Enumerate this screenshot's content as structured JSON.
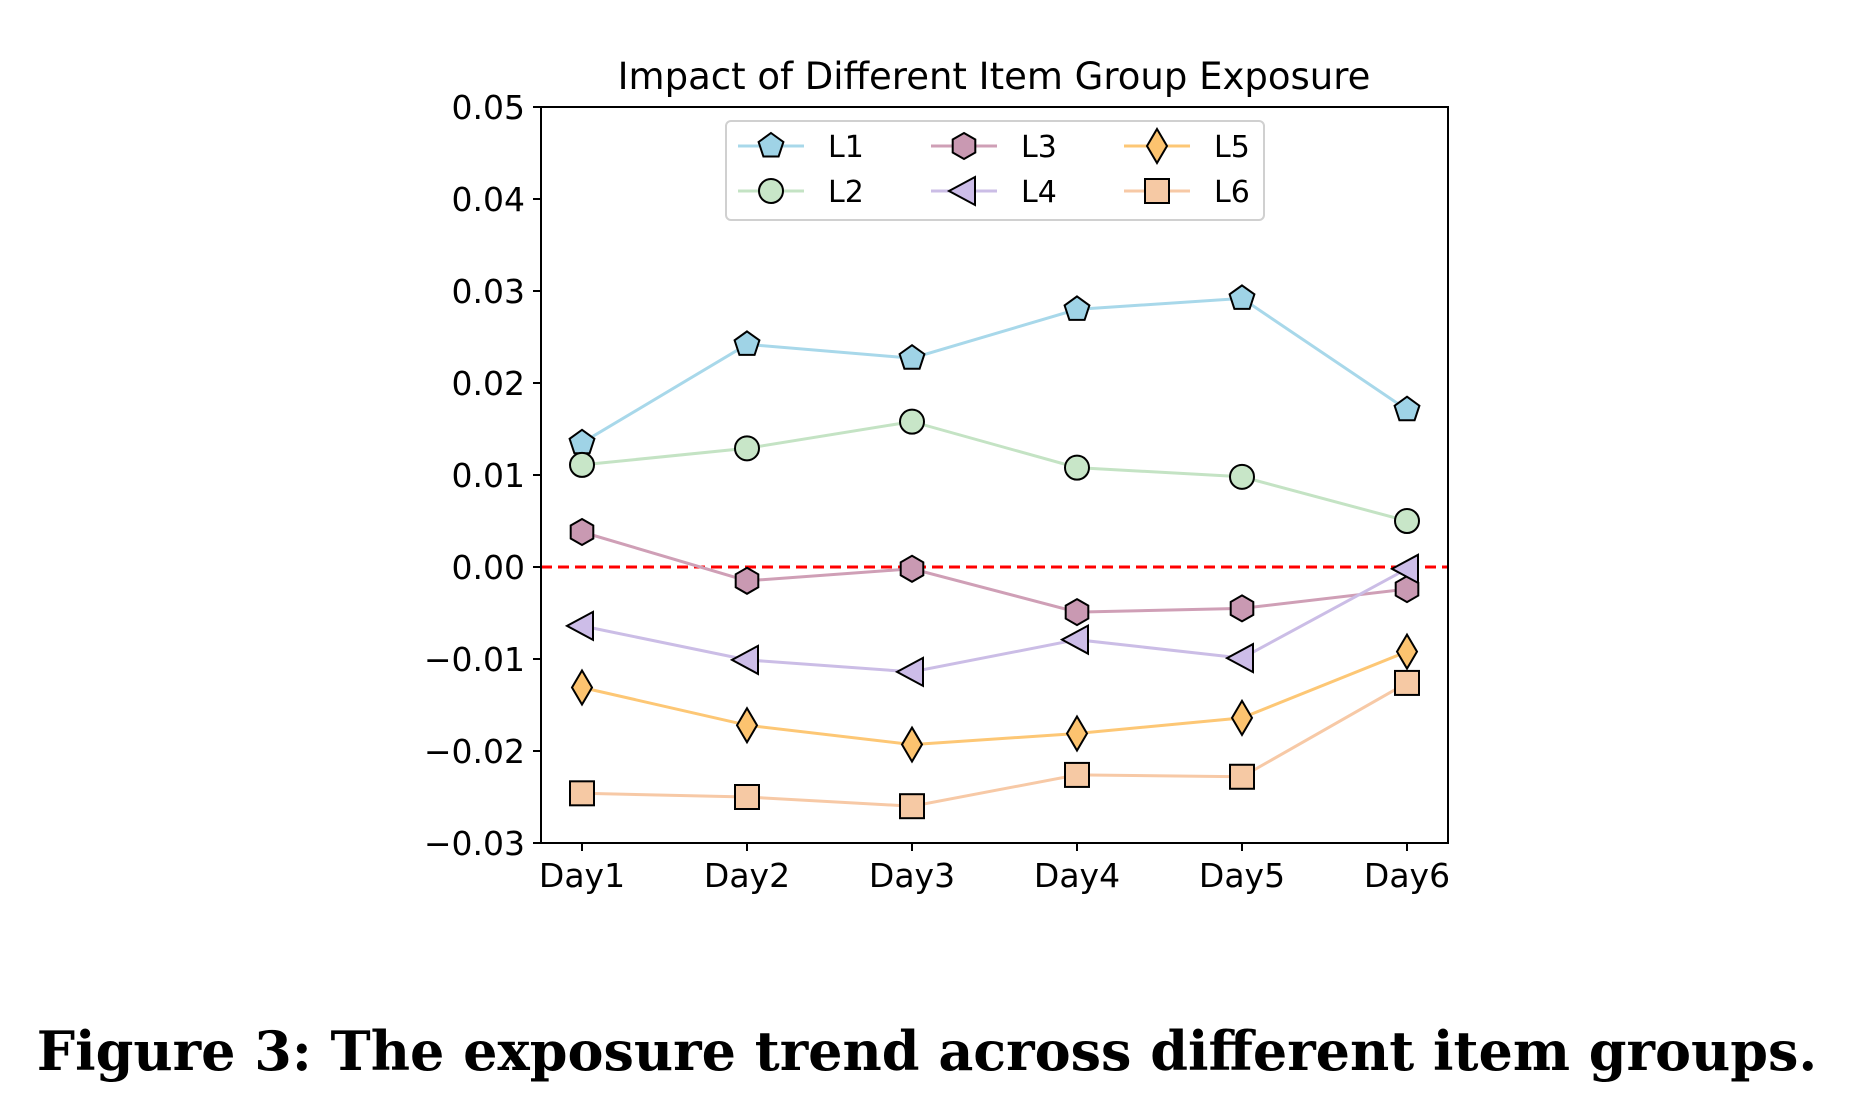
{
  "chart_data": {
    "type": "line",
    "title": "Impact of Different Item Group Exposure",
    "xlabel": "",
    "ylabel": "",
    "categories": [
      "Day1",
      "Day2",
      "Day3",
      "Day4",
      "Day5",
      "Day6"
    ],
    "ylim": [
      -0.03,
      0.05
    ],
    "yticks": [
      "−0.03",
      "−0.02",
      "−0.01",
      "0.00",
      "0.01",
      "0.02",
      "0.03",
      "0.04",
      "0.05"
    ],
    "ytick_values": [
      -0.03,
      -0.02,
      -0.01,
      0,
      0.01,
      0.02,
      0.03,
      0.04,
      0.05
    ],
    "grid": false,
    "legend_position": "top-center",
    "reference_line": {
      "y": 0,
      "color": "#ff0000",
      "style": "dashed"
    },
    "series": [
      {
        "name": "L1",
        "marker": "pentagon",
        "color": "#a8d8ea",
        "values": [
          0.0135,
          0.0242,
          0.0227,
          0.028,
          0.0292,
          0.0171
        ]
      },
      {
        "name": "L2",
        "marker": "circle",
        "color": "#c4e3c4",
        "values": [
          0.0111,
          0.0129,
          0.0158,
          0.0108,
          0.0098,
          0.005
        ]
      },
      {
        "name": "L3",
        "marker": "hexagon",
        "color": "#cf9fb6",
        "values": [
          0.0038,
          -0.0015,
          -0.0002,
          -0.0049,
          -0.0045,
          -0.0024
        ]
      },
      {
        "name": "L4",
        "marker": "triangle-left",
        "color": "#cbbde6",
        "values": [
          -0.0064,
          -0.0101,
          -0.0114,
          -0.0079,
          -0.0099,
          -0.0002
        ]
      },
      {
        "name": "L5",
        "marker": "thin-diamond",
        "color": "#fdc775",
        "values": [
          -0.0131,
          -0.0172,
          -0.0193,
          -0.0181,
          -0.0164,
          -0.0092
        ]
      },
      {
        "name": "L6",
        "marker": "square",
        "color": "#f7c9a6",
        "values": [
          -0.0246,
          -0.025,
          -0.026,
          -0.0226,
          -0.0228,
          -0.0126
        ]
      }
    ]
  },
  "caption": "Figure 3: The exposure trend across different item groups."
}
